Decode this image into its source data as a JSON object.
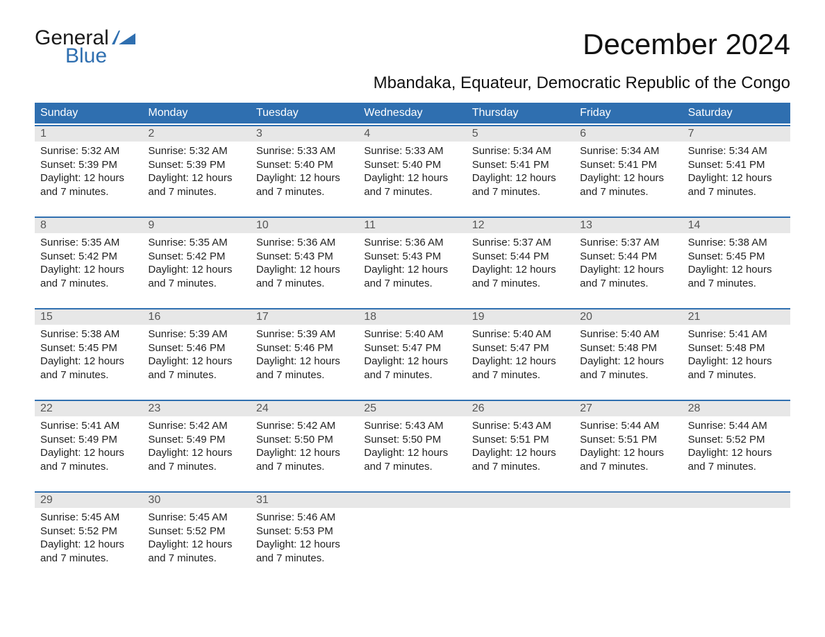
{
  "logo": {
    "word1": "General",
    "word2": "Blue",
    "mark_color": "#2f6fb0",
    "word1_color": "#1a1a1a",
    "word2_color": "#2f6fb0"
  },
  "title": {
    "month": "December 2024",
    "location": "Mbandaka, Equateur, Democratic Republic of the Congo"
  },
  "colors": {
    "header_bg": "#2f6fb0",
    "header_text": "#ffffff",
    "daynum_bg": "#e7e7e7",
    "daynum_text": "#555555",
    "week_border": "#2f6fb0",
    "body_text": "#222222",
    "page_bg": "#ffffff"
  },
  "typography": {
    "month_fontsize": 42,
    "location_fontsize": 24,
    "dow_fontsize": 16,
    "daynum_fontsize": 16,
    "cell_fontsize": 15,
    "logo_fontsize": 30
  },
  "layout": {
    "columns": 7,
    "type": "calendar-table"
  },
  "dow": [
    "Sunday",
    "Monday",
    "Tuesday",
    "Wednesday",
    "Thursday",
    "Friday",
    "Saturday"
  ],
  "weeks": [
    [
      {
        "n": "1",
        "sunrise": "Sunrise: 5:32 AM",
        "sunset": "Sunset: 5:39 PM",
        "d1": "Daylight: 12 hours",
        "d2": "and 7 minutes."
      },
      {
        "n": "2",
        "sunrise": "Sunrise: 5:32 AM",
        "sunset": "Sunset: 5:39 PM",
        "d1": "Daylight: 12 hours",
        "d2": "and 7 minutes."
      },
      {
        "n": "3",
        "sunrise": "Sunrise: 5:33 AM",
        "sunset": "Sunset: 5:40 PM",
        "d1": "Daylight: 12 hours",
        "d2": "and 7 minutes."
      },
      {
        "n": "4",
        "sunrise": "Sunrise: 5:33 AM",
        "sunset": "Sunset: 5:40 PM",
        "d1": "Daylight: 12 hours",
        "d2": "and 7 minutes."
      },
      {
        "n": "5",
        "sunrise": "Sunrise: 5:34 AM",
        "sunset": "Sunset: 5:41 PM",
        "d1": "Daylight: 12 hours",
        "d2": "and 7 minutes."
      },
      {
        "n": "6",
        "sunrise": "Sunrise: 5:34 AM",
        "sunset": "Sunset: 5:41 PM",
        "d1": "Daylight: 12 hours",
        "d2": "and 7 minutes."
      },
      {
        "n": "7",
        "sunrise": "Sunrise: 5:34 AM",
        "sunset": "Sunset: 5:41 PM",
        "d1": "Daylight: 12 hours",
        "d2": "and 7 minutes."
      }
    ],
    [
      {
        "n": "8",
        "sunrise": "Sunrise: 5:35 AM",
        "sunset": "Sunset: 5:42 PM",
        "d1": "Daylight: 12 hours",
        "d2": "and 7 minutes."
      },
      {
        "n": "9",
        "sunrise": "Sunrise: 5:35 AM",
        "sunset": "Sunset: 5:42 PM",
        "d1": "Daylight: 12 hours",
        "d2": "and 7 minutes."
      },
      {
        "n": "10",
        "sunrise": "Sunrise: 5:36 AM",
        "sunset": "Sunset: 5:43 PM",
        "d1": "Daylight: 12 hours",
        "d2": "and 7 minutes."
      },
      {
        "n": "11",
        "sunrise": "Sunrise: 5:36 AM",
        "sunset": "Sunset: 5:43 PM",
        "d1": "Daylight: 12 hours",
        "d2": "and 7 minutes."
      },
      {
        "n": "12",
        "sunrise": "Sunrise: 5:37 AM",
        "sunset": "Sunset: 5:44 PM",
        "d1": "Daylight: 12 hours",
        "d2": "and 7 minutes."
      },
      {
        "n": "13",
        "sunrise": "Sunrise: 5:37 AM",
        "sunset": "Sunset: 5:44 PM",
        "d1": "Daylight: 12 hours",
        "d2": "and 7 minutes."
      },
      {
        "n": "14",
        "sunrise": "Sunrise: 5:38 AM",
        "sunset": "Sunset: 5:45 PM",
        "d1": "Daylight: 12 hours",
        "d2": "and 7 minutes."
      }
    ],
    [
      {
        "n": "15",
        "sunrise": "Sunrise: 5:38 AM",
        "sunset": "Sunset: 5:45 PM",
        "d1": "Daylight: 12 hours",
        "d2": "and 7 minutes."
      },
      {
        "n": "16",
        "sunrise": "Sunrise: 5:39 AM",
        "sunset": "Sunset: 5:46 PM",
        "d1": "Daylight: 12 hours",
        "d2": "and 7 minutes."
      },
      {
        "n": "17",
        "sunrise": "Sunrise: 5:39 AM",
        "sunset": "Sunset: 5:46 PM",
        "d1": "Daylight: 12 hours",
        "d2": "and 7 minutes."
      },
      {
        "n": "18",
        "sunrise": "Sunrise: 5:40 AM",
        "sunset": "Sunset: 5:47 PM",
        "d1": "Daylight: 12 hours",
        "d2": "and 7 minutes."
      },
      {
        "n": "19",
        "sunrise": "Sunrise: 5:40 AM",
        "sunset": "Sunset: 5:47 PM",
        "d1": "Daylight: 12 hours",
        "d2": "and 7 minutes."
      },
      {
        "n": "20",
        "sunrise": "Sunrise: 5:40 AM",
        "sunset": "Sunset: 5:48 PM",
        "d1": "Daylight: 12 hours",
        "d2": "and 7 minutes."
      },
      {
        "n": "21",
        "sunrise": "Sunrise: 5:41 AM",
        "sunset": "Sunset: 5:48 PM",
        "d1": "Daylight: 12 hours",
        "d2": "and 7 minutes."
      }
    ],
    [
      {
        "n": "22",
        "sunrise": "Sunrise: 5:41 AM",
        "sunset": "Sunset: 5:49 PM",
        "d1": "Daylight: 12 hours",
        "d2": "and 7 minutes."
      },
      {
        "n": "23",
        "sunrise": "Sunrise: 5:42 AM",
        "sunset": "Sunset: 5:49 PM",
        "d1": "Daylight: 12 hours",
        "d2": "and 7 minutes."
      },
      {
        "n": "24",
        "sunrise": "Sunrise: 5:42 AM",
        "sunset": "Sunset: 5:50 PM",
        "d1": "Daylight: 12 hours",
        "d2": "and 7 minutes."
      },
      {
        "n": "25",
        "sunrise": "Sunrise: 5:43 AM",
        "sunset": "Sunset: 5:50 PM",
        "d1": "Daylight: 12 hours",
        "d2": "and 7 minutes."
      },
      {
        "n": "26",
        "sunrise": "Sunrise: 5:43 AM",
        "sunset": "Sunset: 5:51 PM",
        "d1": "Daylight: 12 hours",
        "d2": "and 7 minutes."
      },
      {
        "n": "27",
        "sunrise": "Sunrise: 5:44 AM",
        "sunset": "Sunset: 5:51 PM",
        "d1": "Daylight: 12 hours",
        "d2": "and 7 minutes."
      },
      {
        "n": "28",
        "sunrise": "Sunrise: 5:44 AM",
        "sunset": "Sunset: 5:52 PM",
        "d1": "Daylight: 12 hours",
        "d2": "and 7 minutes."
      }
    ],
    [
      {
        "n": "29",
        "sunrise": "Sunrise: 5:45 AM",
        "sunset": "Sunset: 5:52 PM",
        "d1": "Daylight: 12 hours",
        "d2": "and 7 minutes."
      },
      {
        "n": "30",
        "sunrise": "Sunrise: 5:45 AM",
        "sunset": "Sunset: 5:52 PM",
        "d1": "Daylight: 12 hours",
        "d2": "and 7 minutes."
      },
      {
        "n": "31",
        "sunrise": "Sunrise: 5:46 AM",
        "sunset": "Sunset: 5:53 PM",
        "d1": "Daylight: 12 hours",
        "d2": "and 7 minutes."
      },
      null,
      null,
      null,
      null
    ]
  ]
}
